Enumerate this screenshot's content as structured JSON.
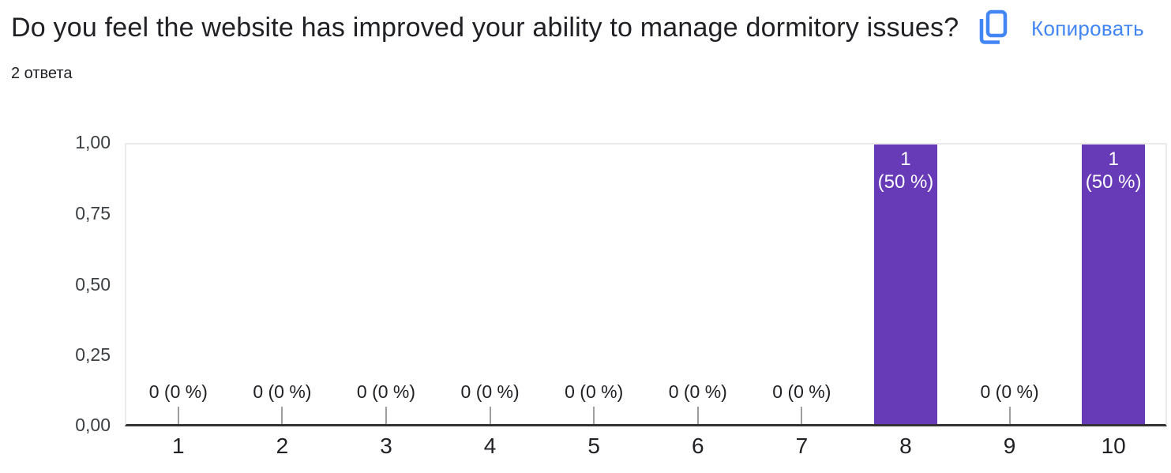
{
  "header": {
    "title": "Do you feel the website has improved your ability to manage dormitory issues?",
    "responses_count": "2 ответа",
    "copy_button_label": "Копировать",
    "copy_icon": "copy-icon"
  },
  "colors": {
    "accent_blue": "#4285f4",
    "bar_purple": "#673ab7",
    "axis_dark": "#333333",
    "grid_light": "#ebebeb",
    "tick_gray": "#9e9e9e",
    "text_dark": "#202124",
    "text_gray": "#3c4043",
    "bar_label_white": "#ffffff"
  },
  "chart_data": {
    "type": "bar",
    "title": "Do you feel the website has improved your ability to manage dormitory issues?",
    "total_responses": 2,
    "categories": [
      "1",
      "2",
      "3",
      "4",
      "5",
      "6",
      "7",
      "8",
      "9",
      "10"
    ],
    "values": [
      0,
      0,
      0,
      0,
      0,
      0,
      0,
      1,
      0,
      1
    ],
    "points": [
      {
        "x": "1",
        "value": 0,
        "zero_label": "0 (0 %)"
      },
      {
        "x": "2",
        "value": 0,
        "zero_label": "0 (0 %)"
      },
      {
        "x": "3",
        "value": 0,
        "zero_label": "0 (0 %)"
      },
      {
        "x": "4",
        "value": 0,
        "zero_label": "0 (0 %)"
      },
      {
        "x": "5",
        "value": 0,
        "zero_label": "0 (0 %)"
      },
      {
        "x": "6",
        "value": 0,
        "zero_label": "0 (0 %)"
      },
      {
        "x": "7",
        "value": 0,
        "zero_label": "0 (0 %)"
      },
      {
        "x": "8",
        "value": 1,
        "bar_label_lines": [
          "1",
          "(50 %)"
        ]
      },
      {
        "x": "9",
        "value": 0,
        "zero_label": "0 (0 %)"
      },
      {
        "x": "10",
        "value": 1,
        "bar_label_lines": [
          "1",
          "(50 %)"
        ]
      }
    ],
    "y_axis": {
      "tick_labels": [
        "1,00",
        "0,75",
        "0,50",
        "0,25",
        "0,00"
      ],
      "range": [
        0,
        1
      ],
      "tick_values": [
        1.0,
        0.75,
        0.5,
        0.25,
        0.0
      ]
    },
    "x_axis": {
      "label": ""
    },
    "ylabel": "",
    "xlabel": "",
    "legend": null,
    "grid": "top gridline only, dark bottom axis"
  }
}
